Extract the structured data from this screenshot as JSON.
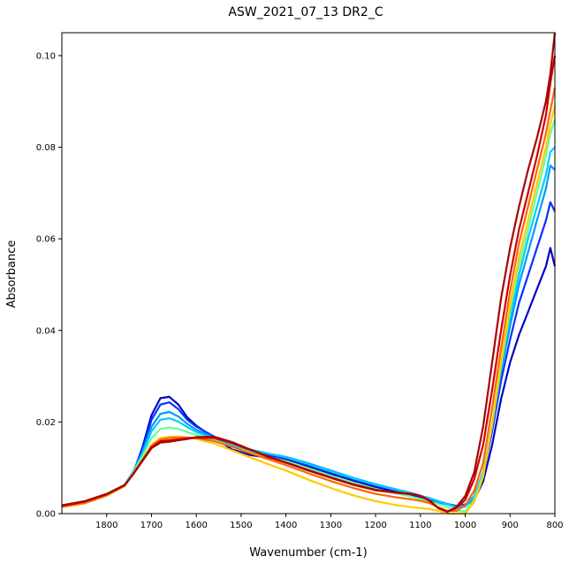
{
  "chart_data": {
    "type": "line",
    "title": "ASW_2021_07_13 DR2_C",
    "xlabel": "Wavenumber (cm-1)",
    "ylabel": "Absorbance",
    "xlim": [
      1900,
      800
    ],
    "ylim": [
      0.0,
      0.105
    ],
    "x_reversed": true,
    "grid": false,
    "legend": "none",
    "x_ticks": [
      1800,
      1700,
      1600,
      1500,
      1400,
      1300,
      1200,
      1100,
      1000,
      900,
      800
    ],
    "x_tick_labels": [
      "1800",
      "1700",
      "1600",
      "1500",
      "1400",
      "1300",
      "1200",
      "1100",
      "1000",
      "900",
      "800"
    ],
    "y_ticks": [
      0.0,
      0.02,
      0.04,
      0.06,
      0.08,
      0.1
    ],
    "y_tick_labels": [
      "0.00",
      "0.02",
      "0.04",
      "0.06",
      "0.08",
      "0.10"
    ],
    "x": [
      1900,
      1850,
      1800,
      1760,
      1740,
      1720,
      1700,
      1680,
      1660,
      1640,
      1620,
      1600,
      1560,
      1520,
      1480,
      1440,
      1400,
      1350,
      1300,
      1250,
      1200,
      1150,
      1120,
      1100,
      1080,
      1060,
      1040,
      1020,
      1000,
      980,
      960,
      940,
      920,
      900,
      880,
      860,
      840,
      820,
      810,
      800
    ],
    "series": [
      {
        "color": "#0000cc",
        "values": [
          0.0018,
          0.0026,
          0.004,
          0.006,
          0.009,
          0.0145,
          0.0215,
          0.0252,
          0.0255,
          0.0238,
          0.021,
          0.0192,
          0.0165,
          0.014,
          0.0128,
          0.0122,
          0.0118,
          0.0102,
          0.0086,
          0.0071,
          0.0058,
          0.0047,
          0.004,
          0.0035,
          0.003,
          0.0025,
          0.002,
          0.0016,
          0.0018,
          0.003,
          0.007,
          0.015,
          0.025,
          0.033,
          0.039,
          0.044,
          0.049,
          0.054,
          0.058,
          0.054
        ]
      },
      {
        "color": "#0033ff",
        "values": [
          0.0018,
          0.0026,
          0.0042,
          0.0062,
          0.0092,
          0.014,
          0.0205,
          0.0238,
          0.0243,
          0.0228,
          0.0205,
          0.019,
          0.0168,
          0.0148,
          0.0135,
          0.0127,
          0.0121,
          0.0106,
          0.009,
          0.0075,
          0.0061,
          0.005,
          0.0043,
          0.0038,
          0.0033,
          0.0027,
          0.0021,
          0.0017,
          0.002,
          0.0035,
          0.0085,
          0.018,
          0.029,
          0.038,
          0.046,
          0.052,
          0.058,
          0.064,
          0.068,
          0.066
        ]
      },
      {
        "color": "#0099ff",
        "values": [
          0.0017,
          0.0025,
          0.0042,
          0.0063,
          0.0093,
          0.0135,
          0.019,
          0.0218,
          0.0222,
          0.0212,
          0.0196,
          0.0183,
          0.0166,
          0.015,
          0.014,
          0.0131,
          0.0124,
          0.011,
          0.0094,
          0.0078,
          0.0064,
          0.0052,
          0.0045,
          0.0039,
          0.0034,
          0.0027,
          0.0021,
          0.0015,
          0.0018,
          0.0038,
          0.009,
          0.019,
          0.031,
          0.041,
          0.05,
          0.057,
          0.064,
          0.071,
          0.076,
          0.075
        ]
      },
      {
        "color": "#00ccff",
        "values": [
          0.0016,
          0.0025,
          0.0042,
          0.0063,
          0.0093,
          0.013,
          0.018,
          0.0205,
          0.0208,
          0.0201,
          0.0189,
          0.0178,
          0.0164,
          0.015,
          0.014,
          0.0131,
          0.0123,
          0.0108,
          0.0092,
          0.0077,
          0.0063,
          0.0051,
          0.0044,
          0.0038,
          0.0033,
          0.0026,
          0.002,
          0.0013,
          0.0015,
          0.0036,
          0.0088,
          0.0195,
          0.032,
          0.043,
          0.052,
          0.06,
          0.067,
          0.074,
          0.079,
          0.08
        ]
      },
      {
        "color": "#66ff99",
        "values": [
          0.0015,
          0.0024,
          0.0041,
          0.0062,
          0.0091,
          0.0125,
          0.0165,
          0.0185,
          0.0188,
          0.0185,
          0.0178,
          0.0172,
          0.016,
          0.0146,
          0.0135,
          0.0124,
          0.0115,
          0.0099,
          0.0083,
          0.0068,
          0.0054,
          0.0043,
          0.0037,
          0.0032,
          0.0027,
          0.0021,
          0.0014,
          0.0006,
          0.0005,
          0.003,
          0.0085,
          0.0195,
          0.0325,
          0.0445,
          0.054,
          0.062,
          0.07,
          0.078,
          0.083,
          0.086
        ]
      },
      {
        "color": "#ffcc00",
        "values": [
          0.0014,
          0.0022,
          0.0039,
          0.006,
          0.0088,
          0.0118,
          0.015,
          0.0165,
          0.0168,
          0.0168,
          0.0166,
          0.0163,
          0.0153,
          0.0138,
          0.0123,
          0.0108,
          0.0094,
          0.0074,
          0.0056,
          0.004,
          0.0027,
          0.0018,
          0.0014,
          0.0012,
          0.001,
          0.0006,
          0.0,
          0.0,
          0.0,
          0.0025,
          0.008,
          0.0195,
          0.033,
          0.0455,
          0.056,
          0.064,
          0.072,
          0.08,
          0.085,
          0.089
        ]
      },
      {
        "color": "#ff6600",
        "values": [
          0.0015,
          0.0023,
          0.004,
          0.0061,
          0.0088,
          0.0117,
          0.0148,
          0.0162,
          0.0165,
          0.0166,
          0.0166,
          0.0165,
          0.0158,
          0.0146,
          0.0132,
          0.0119,
          0.0106,
          0.0088,
          0.0071,
          0.0056,
          0.0043,
          0.0035,
          0.0031,
          0.0028,
          0.0023,
          0.0014,
          0.0006,
          0.0006,
          0.0018,
          0.005,
          0.011,
          0.023,
          0.036,
          0.0485,
          0.059,
          0.067,
          0.075,
          0.083,
          0.088,
          0.093
        ]
      },
      {
        "color": "#cc0000",
        "values": [
          0.0017,
          0.0026,
          0.0042,
          0.0062,
          0.0088,
          0.0116,
          0.0145,
          0.0158,
          0.016,
          0.0162,
          0.0164,
          0.0166,
          0.0165,
          0.0154,
          0.0139,
          0.0124,
          0.0111,
          0.0094,
          0.0078,
          0.0063,
          0.0051,
          0.0045,
          0.0042,
          0.0038,
          0.0028,
          0.0012,
          0.0004,
          0.0012,
          0.003,
          0.0075,
          0.015,
          0.027,
          0.04,
          0.052,
          0.062,
          0.07,
          0.078,
          0.087,
          0.094,
          0.1
        ]
      },
      {
        "color": "#aa0000",
        "values": [
          0.0018,
          0.0027,
          0.0043,
          0.0062,
          0.0087,
          0.0115,
          0.0143,
          0.0155,
          0.0157,
          0.016,
          0.0163,
          0.0167,
          0.0168,
          0.0156,
          0.014,
          0.0125,
          0.0112,
          0.0095,
          0.0079,
          0.0064,
          0.0052,
          0.0046,
          0.0043,
          0.0039,
          0.0029,
          0.0012,
          0.0004,
          0.0014,
          0.0038,
          0.009,
          0.019,
          0.033,
          0.047,
          0.058,
          0.067,
          0.075,
          0.082,
          0.09,
          0.096,
          0.105
        ]
      }
    ]
  }
}
